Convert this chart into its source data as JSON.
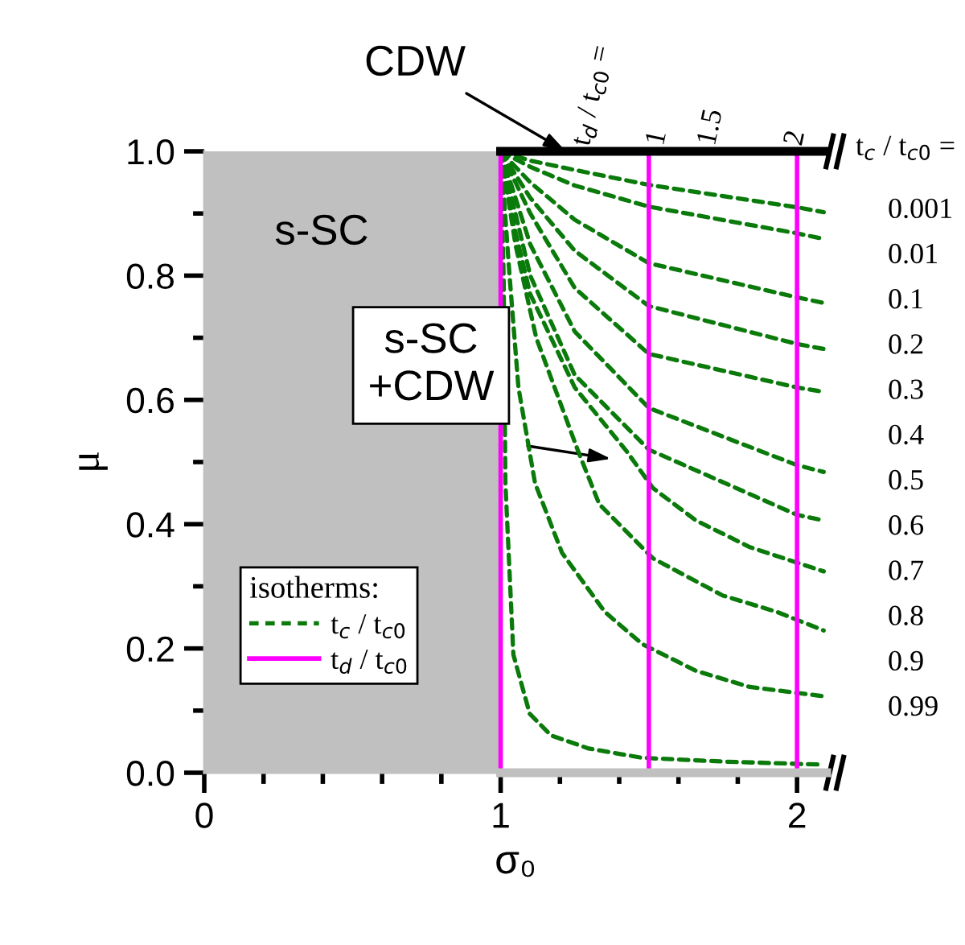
{
  "chart_data": {
    "type": "line",
    "xlabel": "σ₀",
    "ylabel": "μ",
    "xlim": [
      0,
      2.1
    ],
    "ylim": [
      0,
      1.0
    ],
    "xticks": [
      0,
      {
        "value": 0.2,
        "label": null
      },
      {
        "value": 0.4,
        "label": null
      },
      {
        "value": 0.6,
        "label": null
      },
      {
        "value": 0.8,
        "label": null
      },
      1,
      {
        "value": 1.2,
        "label": null
      },
      {
        "value": 1.4,
        "label": null
      },
      {
        "value": 1.6,
        "label": null
      },
      {
        "value": 1.8,
        "label": null
      },
      2
    ],
    "yticks": [
      {
        "value": 0,
        "label": "0.0"
      },
      {
        "value": 0.1,
        "label": null
      },
      0.2,
      {
        "value": 0.3,
        "label": null
      },
      0.4,
      {
        "value": 0.5,
        "label": null
      },
      0.6,
      {
        "value": 0.7,
        "label": null
      },
      0.8,
      {
        "value": 0.9,
        "label": null
      },
      {
        "value": 1.0,
        "label": "1.0"
      }
    ],
    "bands": [
      {
        "axis": "x",
        "from": 0,
        "to": 1,
        "color": "#c0c0c0"
      }
    ],
    "legend": "bottom left",
    "legend_title": "isotherms:",
    "grid": false,
    "series": [
      {
        "name": "t$_{c}$ / t$_{c0}$",
        "color": "#0a7a0a",
        "line_style": "dashed",
        "x": [
          1,
          1.1,
          1.25,
          1.5,
          2.0,
          2.09
        ],
        "values": [
          1,
          0.985,
          0.97,
          0.946,
          0.91,
          0.902
        ]
      },
      {
        "color": "#0a7a0a",
        "line_style": "dashed",
        "x": [
          1,
          1.1,
          1.25,
          1.5,
          2.0,
          2.09
        ],
        "values": [
          1,
          0.975,
          0.945,
          0.911,
          0.868,
          0.859
        ]
      },
      {
        "color": "#0a7a0a",
        "line_style": "dashed",
        "x": [
          1,
          1.1,
          1.25,
          1.5,
          2.0,
          2.09
        ],
        "values": [
          1,
          0.95,
          0.89,
          0.82,
          0.765,
          0.756
        ]
      },
      {
        "color": "#0a7a0a",
        "line_style": "dashed",
        "x": [
          1,
          1.1,
          1.25,
          1.5,
          2.0,
          2.09
        ],
        "values": [
          1,
          0.925,
          0.84,
          0.751,
          0.69,
          0.682
        ]
      },
      {
        "color": "#0a7a0a",
        "line_style": "dashed",
        "x": [
          1,
          1.1,
          1.25,
          1.5,
          2.0,
          2.09
        ],
        "values": [
          1,
          0.9,
          0.78,
          0.674,
          0.62,
          0.613
        ]
      },
      {
        "color": "#0a7a0a",
        "line_style": "dashed",
        "x": [
          1,
          1.1,
          1.25,
          1.5,
          2.0,
          2.09
        ],
        "values": [
          1,
          0.85,
          0.71,
          0.587,
          0.495,
          0.484
        ]
      },
      {
        "color": "#0a7a0a",
        "line_style": "dashed",
        "x": [
          1,
          1.1,
          1.25,
          1.5,
          2.0,
          2.09
        ],
        "values": [
          1,
          0.8,
          0.64,
          0.52,
          0.415,
          0.406
        ]
      },
      {
        "color": "#0a7a0a",
        "line_style": "dashed",
        "x": [
          1,
          1.05,
          1.1,
          1.25,
          1.424,
          1.514,
          1.659,
          1.841,
          2.09
        ],
        "values": [
          1,
          0.87,
          0.77,
          0.62,
          0.518,
          0.458,
          0.406,
          0.363,
          0.324
        ]
      },
      {
        "color": "#0a7a0a",
        "line_style": "dashed",
        "x": [
          1,
          1.05,
          1.12,
          1.261,
          1.333,
          1.514,
          1.75,
          1.931,
          2.09
        ],
        "values": [
          1,
          0.85,
          0.7,
          0.518,
          0.432,
          0.345,
          0.285,
          0.259,
          0.229
        ]
      },
      {
        "color": "#0a7a0a",
        "line_style": "dashed",
        "x": [
          1,
          1.03,
          1.06,
          1.116,
          1.207,
          1.351,
          1.478,
          1.659,
          1.841,
          2.09
        ],
        "values": [
          1,
          0.8,
          0.62,
          0.466,
          0.354,
          0.259,
          0.207,
          0.164,
          0.138,
          0.123
        ]
      },
      {
        "color": "#0a7a0a",
        "line_style": "dashed",
        "x": [
          1,
          1.01,
          1.016,
          1.043,
          1.098,
          1.17,
          1.297,
          1.478,
          1.75,
          2.09
        ],
        "values": [
          1,
          0.8,
          0.466,
          0.19,
          0.095,
          0.06,
          0.039,
          0.024,
          0.018,
          0.013
        ]
      },
      {
        "name": "t$_{d}$ / t$_{c0}$",
        "color": "#ff00ff",
        "line_style": "solid",
        "x": [
          1,
          1
        ],
        "values": [
          0,
          1
        ]
      },
      {
        "color": "#ff00ff",
        "line_style": "solid",
        "x": [
          1.5,
          1.5
        ],
        "values": [
          0,
          1
        ]
      },
      {
        "color": "#ff00ff",
        "line_style": "solid",
        "x": [
          2,
          2
        ],
        "values": [
          0,
          1
        ]
      },
      {
        "color": "#c0c0c0",
        "line_style": "solid",
        "x": [
          1,
          2.1
        ],
        "values": [
          0,
          0
        ]
      },
      {
        "color": "#000000",
        "line_style": "solid",
        "x": [
          1,
          2.1
        ],
        "values": [
          1,
          1
        ]
      }
    ],
    "annotations": [
      "s-SC",
      "s-SC\n+CDW",
      {
        "text": "CDW",
        "x": 1.22,
        "y": 1.0
      },
      "t$_{d}$ / t$_{c0}$ =",
      "1",
      "1.5",
      "2",
      "t$_{c}$ / t$_{c0}$ =",
      "0.001",
      "0.01",
      "0.1",
      "0.2",
      "0.3",
      "0.4",
      "0.5",
      "0.6",
      "0.7",
      "0.8",
      "0.9",
      "0.99"
    ]
  }
}
